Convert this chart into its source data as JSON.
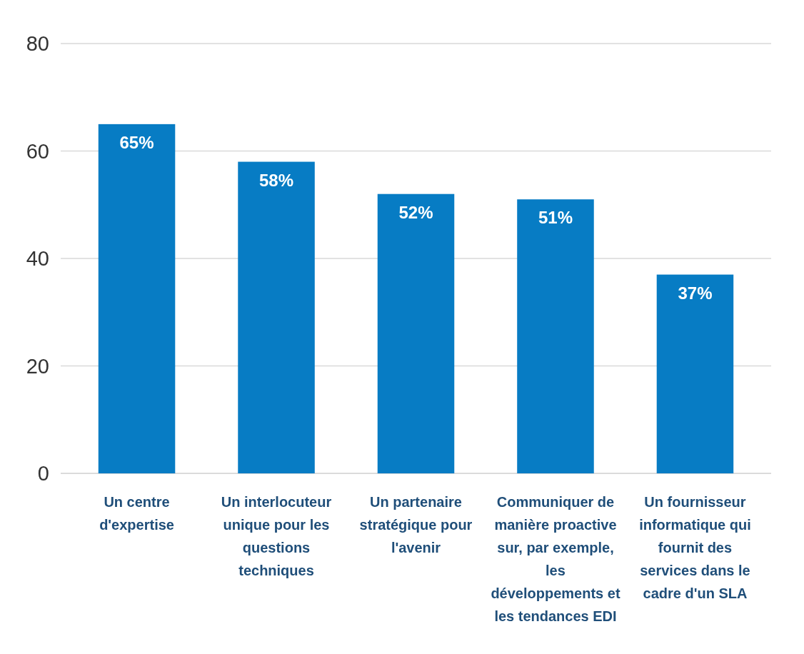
{
  "chart_data": {
    "type": "bar",
    "categories": [
      "Un centre d'expertise",
      "Un interlocuteur unique pour les questions techniques",
      "Un partenaire stratégique pour l'avenir",
      "Communiquer de manière proactive sur, par exemple, les développements et les tendances EDI",
      "Un fournisseur informatique qui fournit des services dans le cadre d'un SLA"
    ],
    "values": [
      65,
      58,
      52,
      51,
      37
    ],
    "value_labels": [
      "65%",
      "58%",
      "52%",
      "51%",
      "37%"
    ],
    "color": "#077cc4",
    "ylim": [
      0,
      80
    ],
    "yticks": [
      0,
      20,
      40,
      60,
      80
    ],
    "grid": "y"
  }
}
